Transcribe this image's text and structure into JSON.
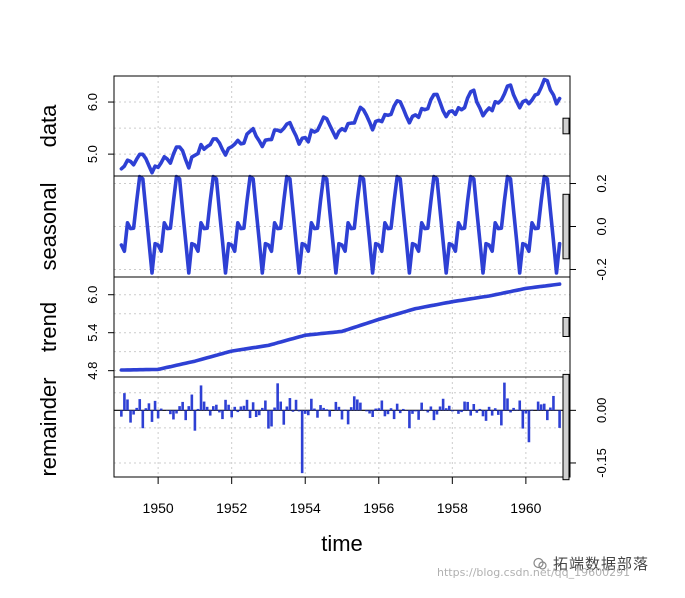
{
  "chart_data": {
    "type": "line",
    "x_axis": {
      "label": "time",
      "range": [
        1948.8,
        1961.2
      ],
      "ticks": [
        "1950",
        "1952",
        "1954",
        "1956",
        "1958",
        "1960"
      ]
    },
    "start": 1949,
    "frequency": 12,
    "line_color": "#2e40d4",
    "panels": [
      {
        "key": "data",
        "label": "data",
        "ylim": [
          4.58,
          6.5
        ],
        "ticks": [
          "5.0",
          "6.0"
        ],
        "axis_side": "left",
        "grid_y": [
          5.0,
          5.5,
          6.0
        ],
        "bar_height": 0.3,
        "values": [
          4.718,
          4.771,
          4.883,
          4.86,
          4.796,
          4.905,
          4.997,
          4.997,
          4.913,
          4.779,
          4.644,
          4.771,
          4.745,
          4.836,
          4.949,
          4.905,
          4.828,
          5.004,
          5.136,
          5.136,
          5.063,
          4.89,
          4.736,
          4.942,
          4.977,
          5.011,
          5.182,
          5.094,
          5.147,
          5.182,
          5.293,
          5.293,
          5.215,
          5.087,
          4.984,
          5.112,
          5.142,
          5.193,
          5.263,
          5.198,
          5.209,
          5.385,
          5.438,
          5.489,
          5.342,
          5.252,
          5.147,
          5.268,
          5.278,
          5.278,
          5.464,
          5.46,
          5.434,
          5.493,
          5.576,
          5.606,
          5.468,
          5.352,
          5.193,
          5.303,
          5.318,
          5.236,
          5.46,
          5.425,
          5.455,
          5.576,
          5.71,
          5.68,
          5.557,
          5.434,
          5.313,
          5.434,
          5.489,
          5.451,
          5.587,
          5.595,
          5.598,
          5.753,
          5.897,
          5.849,
          5.743,
          5.613,
          5.468,
          5.628,
          5.649,
          5.624,
          5.759,
          5.746,
          5.762,
          5.924,
          6.023,
          6.004,
          5.872,
          5.724,
          5.602,
          5.724,
          5.753,
          5.707,
          5.875,
          5.852,
          5.872,
          6.045,
          6.142,
          6.146,
          5.991,
          5.829,
          5.72,
          5.817,
          5.829,
          5.762,
          5.892,
          5.852,
          5.894,
          6.075,
          6.196,
          6.225,
          6.001,
          5.883,
          5.737,
          5.82,
          5.886,
          5.835,
          6.006,
          5.981,
          6.04,
          6.157,
          6.306,
          6.326,
          6.138,
          6.009,
          5.892,
          6.004,
          6.033,
          5.969,
          6.038,
          6.133,
          6.157,
          6.282,
          6.433,
          6.407,
          6.23,
          6.133,
          5.966,
          6.068
        ]
      },
      {
        "key": "seasonal",
        "label": "seasonal",
        "ylim": [
          -0.235,
          0.235
        ],
        "ticks": [
          "0.2",
          "0.0",
          "-0.2"
        ],
        "axis_side": "right",
        "grid_y": [
          -0.2,
          0.0,
          0.2
        ],
        "bar_height": 0.3,
        "values": [
          -0.086,
          -0.115,
          0.017,
          -0.01,
          -0.008,
          0.119,
          0.232,
          0.222,
          0.074,
          -0.069,
          -0.216,
          -0.08
        ]
      },
      {
        "key": "trend",
        "label": "trend",
        "ylim": [
          4.7,
          6.28
        ],
        "ticks": [
          "4.8",
          "5.4",
          "6.0"
        ],
        "axis_side": "left",
        "grid_y": [
          4.8,
          5.1,
          5.4,
          5.7,
          6.0
        ],
        "bar_height": 0.3,
        "years": [
          1949,
          1950,
          1951,
          1952,
          1953,
          1954,
          1955,
          1956,
          1957,
          1958,
          1959,
          1960,
          1960.95
        ],
        "values": [
          4.81,
          4.82,
          4.95,
          5.11,
          5.2,
          5.36,
          5.42,
          5.61,
          5.78,
          5.89,
          5.98,
          6.1,
          6.17
        ]
      },
      {
        "key": "remainder",
        "label": "remainder",
        "ylim": [
          -0.19,
          0.095
        ],
        "ticks": [
          "0.00",
          "-0.15"
        ],
        "axis_side": "right",
        "grid_y": [
          -0.15,
          -0.05,
          0.05
        ],
        "bar_height": 0.3,
        "values": [
          -0.018,
          0.049,
          0.031,
          -0.035,
          -0.012,
          0.007,
          0.032,
          -0.051,
          0.006,
          0.02,
          -0.033,
          0.027,
          -0.023,
          0.005,
          0.0,
          0.001,
          -0.011,
          -0.026,
          -0.009,
          0.012,
          0.024,
          -0.028,
          0.012,
          0.045,
          -0.058,
          0.004,
          0.071,
          0.025,
          0.01,
          -0.015,
          0.012,
          0.016,
          -0.006,
          -0.025,
          0.03,
          0.016,
          -0.02,
          0.01,
          -0.005,
          0.011,
          0.013,
          0.03,
          -0.022,
          0.023,
          -0.019,
          -0.014,
          0.007,
          0.028,
          -0.052,
          -0.046,
          0.008,
          0.077,
          0.025,
          -0.041,
          0.011,
          0.035,
          -0.004,
          0.03,
          -0.003,
          -0.179,
          -0.01,
          -0.014,
          0.033,
          0.005,
          -0.021,
          0.015,
          0.007,
          0.003,
          -0.018,
          0.0,
          0.024,
          0.01,
          -0.026,
          0.002,
          -0.04,
          0.009,
          0.04,
          0.031,
          0.022,
          0.0,
          -0.003,
          -0.009,
          -0.019,
          0.005,
          0.006,
          0.028,
          -0.017,
          -0.011,
          0.006,
          -0.025,
          0.019,
          -0.008,
          0.004,
          -0.001,
          -0.051,
          -0.01,
          -0.003,
          -0.027,
          0.022,
          0.001,
          -0.006,
          0.011,
          -0.028,
          -0.012,
          0.011,
          0.033,
          0.006,
          0.013,
          -0.003,
          0.001,
          -0.01,
          -0.005,
          0.025,
          0.024,
          -0.015,
          0.018,
          -0.007,
          0.004,
          -0.017,
          -0.03,
          0.01,
          -0.015,
          0.006,
          -0.013,
          -0.043,
          0.079,
          0.034,
          -0.006,
          0.007,
          0.002,
          0.028,
          -0.052,
          -0.009,
          -0.091,
          0.002,
          -0.0,
          0.025,
          0.017,
          0.019,
          -0.028,
          0.008,
          0.041,
          0.001,
          -0.05
        ]
      }
    ]
  },
  "watermark": {
    "title": "拓端数据部落",
    "url": "https://blog.csdn.net/qq_19600291"
  }
}
